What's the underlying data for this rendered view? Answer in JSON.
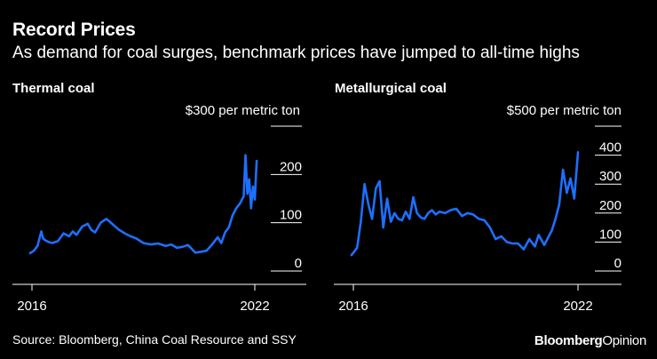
{
  "header": {
    "title": "Record Prices",
    "subtitle": "As demand for coal surges, benchmark prices have jumped to all-time highs"
  },
  "footer": {
    "source": "Source: Bloomberg, China Coal Resource and SSY",
    "brand_main": "Bloomberg",
    "brand_sub": "Opinion"
  },
  "colors": {
    "line": "#1e6fff",
    "background": "#000000",
    "text": "#ffffff"
  },
  "chart_data": [
    {
      "type": "line",
      "title": "Thermal coal",
      "unit_label": "$300 per metric ton",
      "ylim": [
        0,
        300
      ],
      "yticks": [
        {
          "value": 0,
          "label": "0"
        },
        {
          "value": 100,
          "label": "100"
        },
        {
          "value": 200,
          "label": "200"
        }
      ],
      "xlim": [
        2016,
        2022.8
      ],
      "xticks": [
        {
          "value": 2016,
          "label": "2016"
        },
        {
          "value": 2022,
          "label": "2022"
        }
      ],
      "series": [
        {
          "name": "Thermal coal",
          "x": [
            2015.95,
            2016.05,
            2016.15,
            2016.25,
            2016.3,
            2016.35,
            2016.45,
            2016.55,
            2016.7,
            2016.85,
            2017.0,
            2017.1,
            2017.2,
            2017.35,
            2017.5,
            2017.6,
            2017.7,
            2017.85,
            2018.0,
            2018.1,
            2018.2,
            2018.35,
            2018.5,
            2018.65,
            2018.8,
            2019.0,
            2019.2,
            2019.4,
            2019.6,
            2019.75,
            2019.9,
            2020.05,
            2020.2,
            2020.4,
            2020.55,
            2020.7,
            2020.85,
            2021.0,
            2021.1,
            2021.2,
            2021.3,
            2021.4,
            2021.5,
            2021.6,
            2021.7,
            2021.75,
            2021.8,
            2021.85,
            2021.9,
            2021.95,
            2022.0,
            2022.05
          ],
          "values": [
            37,
            42,
            52,
            82,
            68,
            64,
            60,
            58,
            62,
            78,
            72,
            82,
            75,
            92,
            98,
            85,
            80,
            100,
            108,
            102,
            95,
            85,
            78,
            72,
            68,
            58,
            55,
            57,
            52,
            55,
            48,
            50,
            54,
            38,
            40,
            42,
            55,
            70,
            58,
            80,
            90,
            115,
            130,
            140,
            155,
            240,
            160,
            190,
            130,
            175,
            148,
            228
          ]
        }
      ]
    },
    {
      "type": "line",
      "title": "Metallurgical coal",
      "unit_label": "$500 per metric ton",
      "ylim": [
        0,
        500
      ],
      "yticks": [
        {
          "value": 0,
          "label": "0"
        },
        {
          "value": 100,
          "label": "100"
        },
        {
          "value": 200,
          "label": "200"
        },
        {
          "value": 300,
          "label": "300"
        },
        {
          "value": 400,
          "label": "400"
        }
      ],
      "xlim": [
        2016,
        2022.2
      ],
      "xticks": [
        {
          "value": 2016,
          "label": "2016"
        },
        {
          "value": 2022,
          "label": "2022"
        }
      ],
      "series": [
        {
          "name": "Metallurgical coal",
          "x": [
            2015.95,
            2016.1,
            2016.2,
            2016.3,
            2016.4,
            2016.5,
            2016.6,
            2016.7,
            2016.8,
            2016.9,
            2017.0,
            2017.1,
            2017.2,
            2017.3,
            2017.4,
            2017.5,
            2017.6,
            2017.7,
            2017.8,
            2017.9,
            2018.0,
            2018.1,
            2018.2,
            2018.3,
            2018.45,
            2018.6,
            2018.75,
            2018.9,
            2019.05,
            2019.2,
            2019.35,
            2019.5,
            2019.65,
            2019.8,
            2019.95,
            2020.1,
            2020.25,
            2020.4,
            2020.55,
            2020.7,
            2020.85,
            2020.95,
            2021.1,
            2021.2,
            2021.3,
            2021.4,
            2021.5,
            2021.6,
            2021.7,
            2021.8,
            2021.9,
            2022.0
          ],
          "values": [
            55,
            80,
            170,
            300,
            230,
            180,
            285,
            310,
            150,
            250,
            170,
            200,
            180,
            175,
            205,
            180,
            255,
            200,
            185,
            180,
            200,
            210,
            195,
            205,
            200,
            210,
            215,
            190,
            200,
            195,
            180,
            175,
            150,
            110,
            120,
            100,
            95,
            95,
            75,
            110,
            85,
            125,
            90,
            115,
            140,
            180,
            230,
            350,
            270,
            320,
            250,
            410
          ]
        }
      ]
    }
  ]
}
